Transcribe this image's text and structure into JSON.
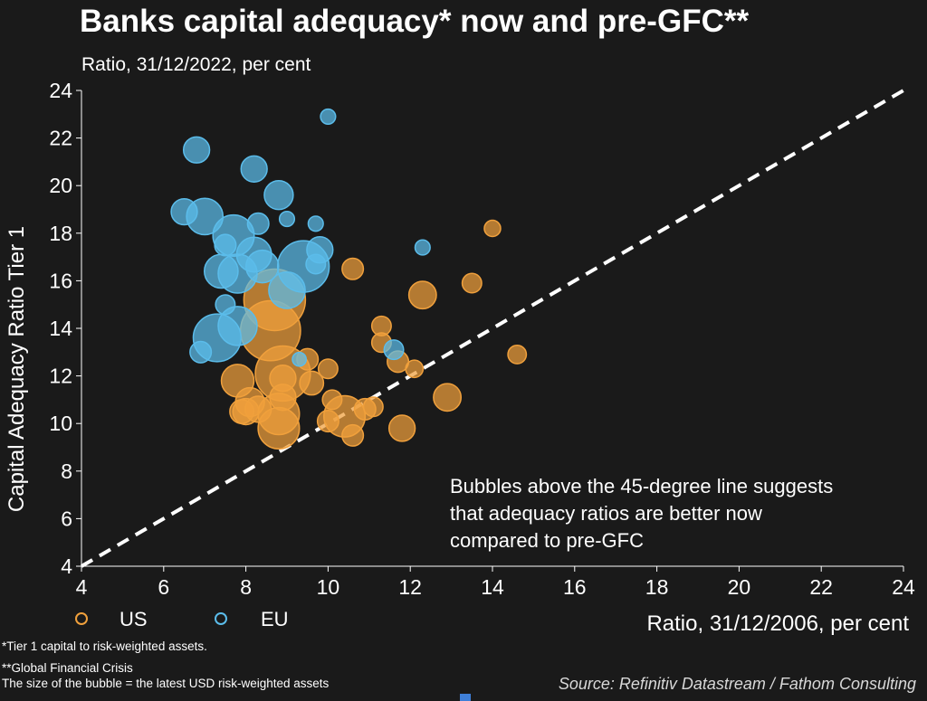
{
  "title": "Banks capital adequacy* now and pre-GFC**",
  "subtitle": "Ratio, 31/12/2022, per cent",
  "annotation": [
    "Bubbles above the 45-degree line suggests",
    "that adequacy ratios are better now",
    "compared to pre-GFC"
  ],
  "legend": {
    "position": "bottom-left",
    "us_label": "US",
    "eu_label": "EU"
  },
  "footnotes": [
    "*Tier 1 capital to risk-weighted assets.",
    "**Global Financial Crisis",
    "The size of the bubble = the latest USD risk-weighted assets"
  ],
  "source": "Source: Refinitiv Datastream / Fathom Consulting",
  "colors": {
    "background": "#1a1a1a",
    "us": "#f0a03c",
    "eu": "#5bbcea",
    "reference_line": "#ffffff"
  },
  "chart_data": {
    "type": "scatter",
    "subtype": "bubble",
    "xlabel": "Ratio, 31/12/2006, per cent",
    "ylabel": "Capital Adequacy Ratio Tier 1",
    "xlim": [
      4,
      24
    ],
    "ylim": [
      4,
      24
    ],
    "x_ticks": [
      4,
      6,
      8,
      10,
      12,
      14,
      16,
      18,
      20,
      22,
      24
    ],
    "y_ticks": [
      4,
      6,
      8,
      10,
      12,
      14,
      16,
      18,
      20,
      22,
      24
    ],
    "grid": false,
    "reference_line": {
      "style": "dashed",
      "from": [
        4,
        4
      ],
      "to": [
        24,
        24
      ]
    },
    "series": [
      {
        "name": "US",
        "color": "#f0a03c",
        "points": [
          {
            "x": 8.7,
            "y": 15.2,
            "size": 1.0
          },
          {
            "x": 8.6,
            "y": 13.9,
            "size": 0.95
          },
          {
            "x": 8.9,
            "y": 12.1,
            "size": 0.8
          },
          {
            "x": 8.8,
            "y": 10.4,
            "size": 0.45
          },
          {
            "x": 8.8,
            "y": 9.8,
            "size": 0.45
          },
          {
            "x": 10.4,
            "y": 10.3,
            "size": 0.45
          },
          {
            "x": 7.8,
            "y": 11.8,
            "size": 0.28
          },
          {
            "x": 8.1,
            "y": 10.9,
            "size": 0.22
          },
          {
            "x": 8.0,
            "y": 10.5,
            "size": 0.18
          },
          {
            "x": 8.3,
            "y": 10.6,
            "size": 0.18
          },
          {
            "x": 7.9,
            "y": 10.5,
            "size": 0.15
          },
          {
            "x": 8.9,
            "y": 11.9,
            "size": 0.18
          },
          {
            "x": 8.9,
            "y": 11.1,
            "size": 0.18
          },
          {
            "x": 9.6,
            "y": 11.7,
            "size": 0.15
          },
          {
            "x": 9.5,
            "y": 12.7,
            "size": 0.12
          },
          {
            "x": 10.0,
            "y": 12.3,
            "size": 0.1
          },
          {
            "x": 10.0,
            "y": 10.1,
            "size": 0.12
          },
          {
            "x": 10.1,
            "y": 11.0,
            "size": 0.1
          },
          {
            "x": 10.6,
            "y": 9.5,
            "size": 0.12
          },
          {
            "x": 10.9,
            "y": 10.6,
            "size": 0.12
          },
          {
            "x": 11.1,
            "y": 10.7,
            "size": 0.1
          },
          {
            "x": 10.6,
            "y": 16.5,
            "size": 0.12
          },
          {
            "x": 11.3,
            "y": 14.1,
            "size": 0.1
          },
          {
            "x": 11.3,
            "y": 13.4,
            "size": 0.1
          },
          {
            "x": 11.7,
            "y": 12.6,
            "size": 0.12
          },
          {
            "x": 11.8,
            "y": 9.8,
            "size": 0.18
          },
          {
            "x": 12.1,
            "y": 12.3,
            "size": 0.08
          },
          {
            "x": 12.3,
            "y": 15.4,
            "size": 0.2
          },
          {
            "x": 12.9,
            "y": 11.1,
            "size": 0.2
          },
          {
            "x": 13.5,
            "y": 15.9,
            "size": 0.1
          },
          {
            "x": 14.0,
            "y": 18.2,
            "size": 0.07
          },
          {
            "x": 14.6,
            "y": 12.9,
            "size": 0.09
          }
        ]
      },
      {
        "name": "EU",
        "color": "#5bbcea",
        "points": [
          {
            "x": 9.4,
            "y": 16.6,
            "size": 0.7
          },
          {
            "x": 7.3,
            "y": 13.6,
            "size": 0.6
          },
          {
            "x": 7.7,
            "y": 17.9,
            "size": 0.45
          },
          {
            "x": 7.8,
            "y": 16.3,
            "size": 0.4
          },
          {
            "x": 7.8,
            "y": 14.1,
            "size": 0.4
          },
          {
            "x": 7.0,
            "y": 18.7,
            "size": 0.35
          },
          {
            "x": 8.2,
            "y": 17.1,
            "size": 0.32
          },
          {
            "x": 7.4,
            "y": 16.4,
            "size": 0.3
          },
          {
            "x": 8.4,
            "y": 16.6,
            "size": 0.28
          },
          {
            "x": 9.0,
            "y": 15.6,
            "size": 0.35
          },
          {
            "x": 8.8,
            "y": 19.6,
            "size": 0.22
          },
          {
            "x": 6.5,
            "y": 18.9,
            "size": 0.18
          },
          {
            "x": 8.2,
            "y": 20.7,
            "size": 0.18
          },
          {
            "x": 6.8,
            "y": 21.5,
            "size": 0.18
          },
          {
            "x": 9.8,
            "y": 17.3,
            "size": 0.18
          },
          {
            "x": 8.3,
            "y": 18.4,
            "size": 0.12
          },
          {
            "x": 7.5,
            "y": 17.5,
            "size": 0.12
          },
          {
            "x": 7.5,
            "y": 15.0,
            "size": 0.1
          },
          {
            "x": 6.9,
            "y": 13.0,
            "size": 0.12
          },
          {
            "x": 9.7,
            "y": 16.7,
            "size": 0.1
          },
          {
            "x": 11.6,
            "y": 13.1,
            "size": 0.1
          },
          {
            "x": 9.0,
            "y": 18.6,
            "size": 0.06
          },
          {
            "x": 9.7,
            "y": 18.4,
            "size": 0.06
          },
          {
            "x": 12.3,
            "y": 17.4,
            "size": 0.06
          },
          {
            "x": 10.0,
            "y": 22.9,
            "size": 0.06
          },
          {
            "x": 9.3,
            "y": 12.7,
            "size": 0.05
          }
        ]
      }
    ]
  }
}
